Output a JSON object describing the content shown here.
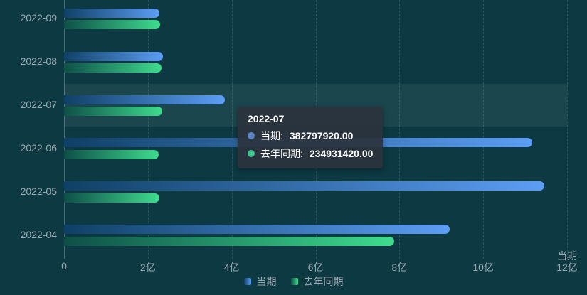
{
  "chart_data": {
    "type": "bar",
    "orientation": "horizontal",
    "title": "",
    "xlabel": "当期",
    "ylabel": "",
    "xlim": [
      0,
      1200000000
    ],
    "x_ticks": [
      "0",
      "2亿",
      "4亿",
      "6亿",
      "8亿",
      "10亿",
      "12亿"
    ],
    "grid": true,
    "legend_position": "bottom",
    "categories": [
      "2022-09",
      "2022-08",
      "2022-07",
      "2022-06",
      "2022-05",
      "2022-04"
    ],
    "highlighted_category": "2022-07",
    "series": [
      {
        "id": "current",
        "name": "当期",
        "color_start": "#0f4066",
        "color_end": "#5c9ef5",
        "values": [
          227000000,
          235000000,
          382797920,
          1116000000,
          1146000000,
          920000000
        ]
      },
      {
        "id": "last-year",
        "name": "去年同期",
        "color_start": "#0e4f47",
        "color_end": "#3edc8e",
        "values": [
          229000000,
          233000000,
          234931420,
          226000000,
          227000000,
          787000000
        ]
      }
    ]
  },
  "tooltip": {
    "title": "2022-07",
    "items": [
      {
        "label": "当期:",
        "value": "382797920.00",
        "color": "#5b82c2"
      },
      {
        "label": "去年同期:",
        "value": "234931420.00",
        "color": "#41c48e"
      }
    ]
  },
  "colors": {
    "background": "#0c3942",
    "axis_text": "#9aa8b2",
    "gridline": "rgba(173,200,207,0.20)",
    "highlight_band": "rgba(210,228,235,0.08)",
    "tooltip_background": "rgba(43,51,61,0.92)"
  }
}
